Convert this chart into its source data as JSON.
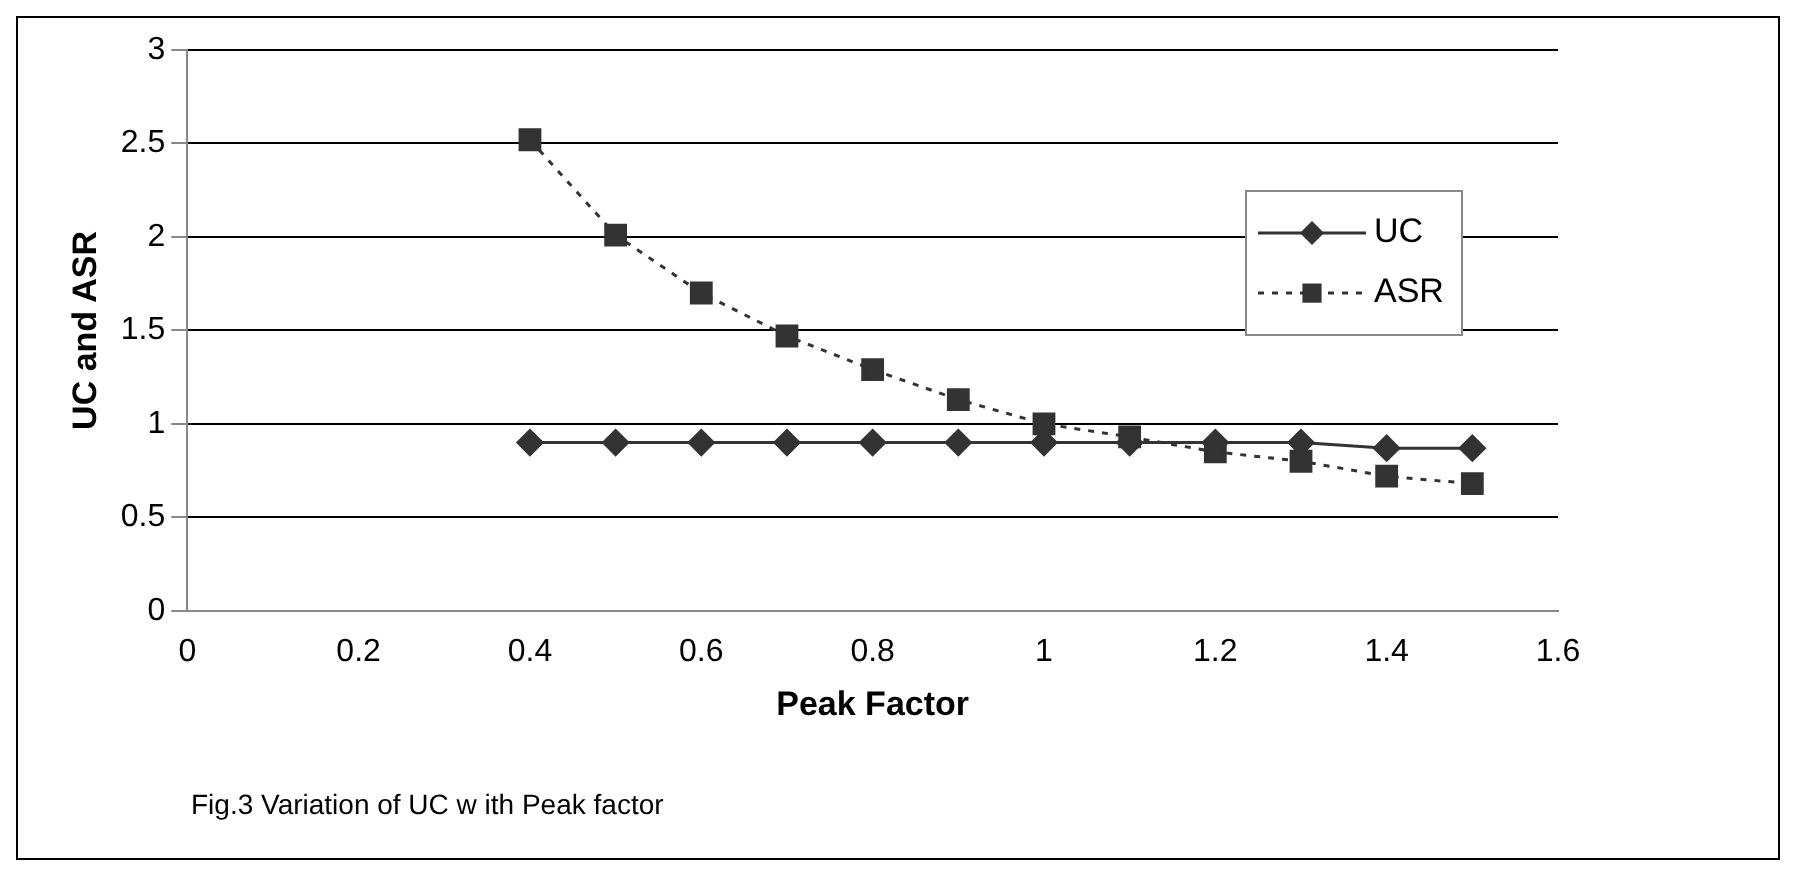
{
  "chart_data": {
    "type": "line",
    "xlabel": "Peak Factor",
    "ylabel": "UC and ASR",
    "annotations": [
      "Fig.3 Variation of UC w ith Peak factor"
    ],
    "x": [
      0.4,
      0.5,
      0.6,
      0.7,
      0.8,
      0.9,
      1.0,
      1.1,
      1.2,
      1.3,
      1.4,
      1.5
    ],
    "series": [
      {
        "name": "UC",
        "color": "#333333",
        "marker": "diamond",
        "line_style": "solid",
        "values": [
          0.9,
          0.9,
          0.9,
          0.9,
          0.9,
          0.9,
          0.9,
          0.9,
          0.9,
          0.9,
          0.87,
          0.87
        ]
      },
      {
        "name": "ASR",
        "color": "#333333",
        "marker": "square",
        "line_style": "dotted",
        "values": [
          2.52,
          2.01,
          1.7,
          1.47,
          1.29,
          1.13,
          1.0,
          0.93,
          0.85,
          0.8,
          0.72,
          0.68
        ]
      }
    ],
    "xlim": [
      0,
      1.6
    ],
    "xticks": [
      0,
      0.2,
      0.4,
      0.6,
      0.8,
      1,
      1.2,
      1.4,
      1.6
    ],
    "ylim": [
      0,
      3
    ],
    "yticks": [
      0,
      0.5,
      1,
      1.5,
      2,
      2.5,
      3
    ],
    "grid": "y",
    "legend": "right"
  }
}
